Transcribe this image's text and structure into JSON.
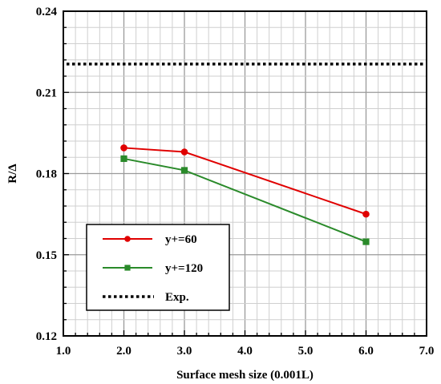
{
  "chart_data": {
    "type": "line",
    "title": "",
    "xlabel": "Surface mesh size (0.001L)",
    "ylabel": "R/Δ",
    "xlim": [
      1.0,
      7.0
    ],
    "ylim": [
      0.12,
      0.24
    ],
    "x_ticks": [
      "1.0",
      "2.0",
      "3.0",
      "4.0",
      "5.0",
      "6.0",
      "7.0"
    ],
    "y_ticks": [
      "0.12",
      "0.15",
      "0.18",
      "0.21",
      "0.24"
    ],
    "grid": true,
    "legend_position": "bottom-left",
    "series": [
      {
        "name": "y+=60",
        "color": "#e00000",
        "marker": "circle",
        "x": [
          2.0,
          3.0,
          6.0
        ],
        "y": [
          0.1895,
          0.188,
          0.165
        ]
      },
      {
        "name": "y+=120",
        "color": "#2a8a2a",
        "marker": "square",
        "x": [
          2.0,
          3.0,
          6.0
        ],
        "y": [
          0.1855,
          0.1812,
          0.1548
        ]
      }
    ],
    "reference_lines": [
      {
        "name": "Exp.",
        "color": "#000000",
        "style": "dotted",
        "y": 0.2205
      }
    ]
  }
}
